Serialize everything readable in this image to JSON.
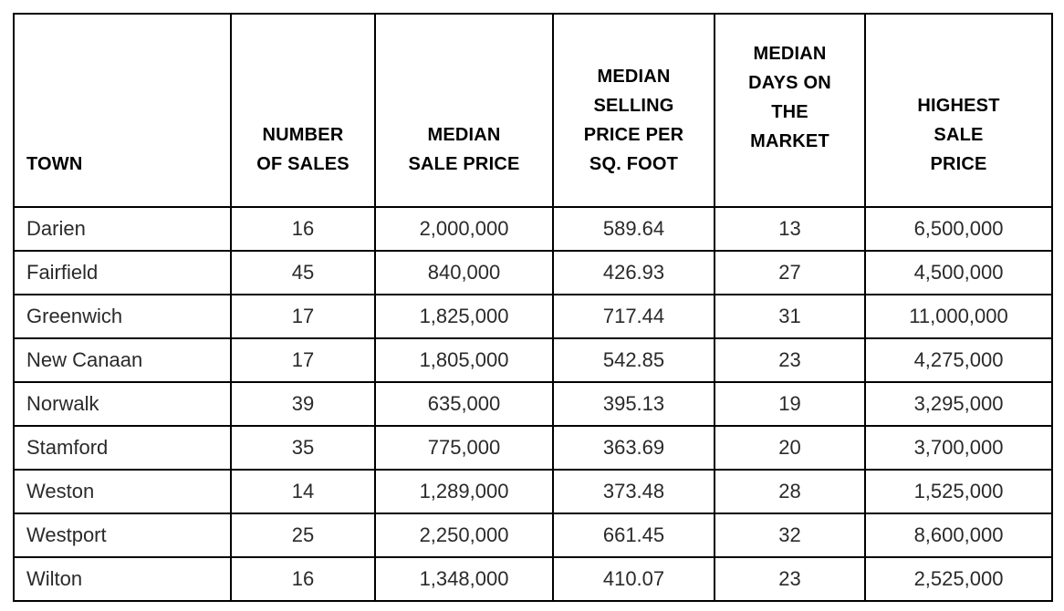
{
  "table": {
    "columns": [
      {
        "key": "town",
        "label": "TOWN"
      },
      {
        "key": "number_of_sales",
        "label": "NUMBER\nOF SALES"
      },
      {
        "key": "median_sale_price",
        "label": "MEDIAN\nSALE PRICE"
      },
      {
        "key": "median_selling_price_per_sq_foot",
        "label": "MEDIAN\nSELLING\nPRICE PER\nSQ. FOOT"
      },
      {
        "key": "median_days_on_market",
        "label": "MEDIAN\nDAYS ON\nTHE\nMARKET"
      },
      {
        "key": "highest_sale_price",
        "label": "HIGHEST\nSALE\nPRICE"
      }
    ],
    "rows": [
      {
        "town": "Darien",
        "number_of_sales": "16",
        "median_sale_price": "2,000,000",
        "median_selling_price_per_sq_foot": "589.64",
        "median_days_on_market": "13",
        "highest_sale_price": "6,500,000"
      },
      {
        "town": "Fairfield",
        "number_of_sales": "45",
        "median_sale_price": "840,000",
        "median_selling_price_per_sq_foot": "426.93",
        "median_days_on_market": "27",
        "highest_sale_price": "4,500,000"
      },
      {
        "town": "Greenwich",
        "number_of_sales": "17",
        "median_sale_price": "1,825,000",
        "median_selling_price_per_sq_foot": "717.44",
        "median_days_on_market": "31",
        "highest_sale_price": "11,000,000"
      },
      {
        "town": "New Canaan",
        "number_of_sales": "17",
        "median_sale_price": "1,805,000",
        "median_selling_price_per_sq_foot": "542.85",
        "median_days_on_market": "23",
        "highest_sale_price": "4,275,000"
      },
      {
        "town": "Norwalk",
        "number_of_sales": "39",
        "median_sale_price": "635,000",
        "median_selling_price_per_sq_foot": "395.13",
        "median_days_on_market": "19",
        "highest_sale_price": "3,295,000"
      },
      {
        "town": "Stamford",
        "number_of_sales": "35",
        "median_sale_price": "775,000",
        "median_selling_price_per_sq_foot": "363.69",
        "median_days_on_market": "20",
        "highest_sale_price": "3,700,000"
      },
      {
        "town": "Weston",
        "number_of_sales": "14",
        "median_sale_price": "1,289,000",
        "median_selling_price_per_sq_foot": "373.48",
        "median_days_on_market": "28",
        "highest_sale_price": "1,525,000"
      },
      {
        "town": "Westport",
        "number_of_sales": "25",
        "median_sale_price": "2,250,000",
        "median_selling_price_per_sq_foot": "661.45",
        "median_days_on_market": "32",
        "highest_sale_price": "8,600,000"
      },
      {
        "town": "Wilton",
        "number_of_sales": "16",
        "median_sale_price": "1,348,000",
        "median_selling_price_per_sq_foot": "410.07",
        "median_days_on_market": "23",
        "highest_sale_price": "2,525,000"
      }
    ]
  },
  "chart_data": {
    "type": "table",
    "title": "",
    "columns": [
      "TOWN",
      "NUMBER OF SALES",
      "MEDIAN SALE PRICE",
      "MEDIAN SELLING PRICE PER SQ. FOOT",
      "MEDIAN DAYS ON THE MARKET",
      "HIGHEST SALE PRICE"
    ],
    "rows": [
      [
        "Darien",
        16,
        2000000,
        589.64,
        13,
        6500000
      ],
      [
        "Fairfield",
        45,
        840000,
        426.93,
        27,
        4500000
      ],
      [
        "Greenwich",
        17,
        1825000,
        717.44,
        31,
        11000000
      ],
      [
        "New Canaan",
        17,
        1805000,
        542.85,
        23,
        4275000
      ],
      [
        "Norwalk",
        39,
        635000,
        395.13,
        19,
        3295000
      ],
      [
        "Stamford",
        35,
        775000,
        363.69,
        20,
        3700000
      ],
      [
        "Weston",
        14,
        1289000,
        373.48,
        28,
        1525000
      ],
      [
        "Westport",
        25,
        2250000,
        661.45,
        32,
        8600000
      ],
      [
        "Wilton",
        16,
        1348000,
        410.07,
        23,
        2525000
      ]
    ]
  }
}
